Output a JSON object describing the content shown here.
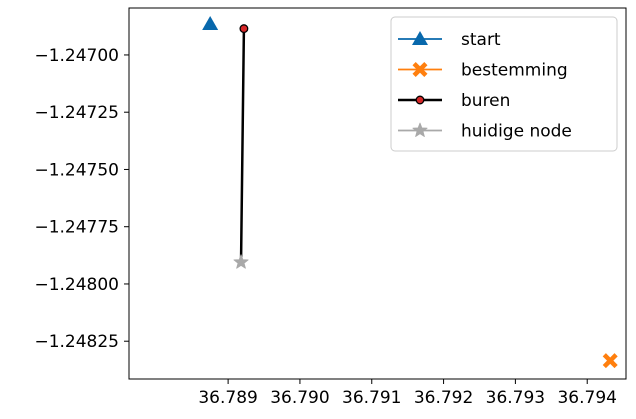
{
  "chart_data": {
    "type": "line",
    "title": "",
    "xlabel": "",
    "ylabel": "",
    "xlim": [
      36.78762,
      36.79454
    ],
    "ylim": [
      -1.248415,
      -1.246795
    ],
    "grid": false,
    "legend_position": "top-right",
    "x_ticks": [
      {
        "value": 36.789,
        "label": "36.789"
      },
      {
        "value": 36.79,
        "label": "36.790"
      },
      {
        "value": 36.791,
        "label": "36.791"
      },
      {
        "value": 36.792,
        "label": "36.792"
      },
      {
        "value": 36.793,
        "label": "36.793"
      },
      {
        "value": 36.794,
        "label": "36.794"
      }
    ],
    "y_ticks": [
      {
        "value": -1.247,
        "label": "−1.24700"
      },
      {
        "value": -1.24725,
        "label": "−1.24725"
      },
      {
        "value": -1.2475,
        "label": "−1.24750"
      },
      {
        "value": -1.24775,
        "label": "−1.24775"
      },
      {
        "value": -1.248,
        "label": "−1.24800"
      },
      {
        "value": -1.24825,
        "label": "−1.24825"
      }
    ],
    "series": [
      {
        "name": "start",
        "color": "#0868ac",
        "marker": "triangle",
        "line": false,
        "points": [
          {
            "x": 36.78875,
            "y": -1.246865
          }
        ]
      },
      {
        "name": "bestemming",
        "color": "#ff7f0e",
        "marker": "x-filled",
        "line": false,
        "points": [
          {
            "x": 36.79432,
            "y": -1.248335
          }
        ]
      },
      {
        "name": "buren",
        "color": "#000000",
        "marker": "circle",
        "marker_fill": "#d62728",
        "line": true,
        "points": [
          {
            "x": 36.78922,
            "y": -1.246885
          },
          {
            "x": 36.78918,
            "y": -1.247905
          }
        ]
      },
      {
        "name": "huidige node",
        "color": "#a9a9a9",
        "marker": "star",
        "line": false,
        "points": [
          {
            "x": 36.78918,
            "y": -1.247905
          }
        ]
      }
    ]
  }
}
